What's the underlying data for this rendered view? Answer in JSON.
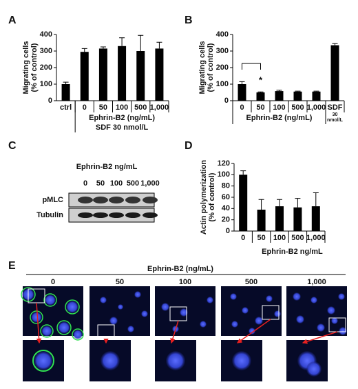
{
  "chart_data": [
    {
      "type": "bar",
      "panel": "A",
      "ylabel": [
        "Migrating cells",
        "(% of control)"
      ],
      "categories": [
        "ctrl",
        "0",
        "50",
        "100",
        "500",
        "1,000"
      ],
      "values": [
        100,
        295,
        315,
        330,
        300,
        315
      ],
      "errors": [
        12,
        20,
        10,
        50,
        95,
        38
      ],
      "color": "#000000",
      "ylim": [
        0,
        400
      ],
      "yticks": [
        0,
        100,
        200,
        300,
        400
      ],
      "xlabel": "Ephrin-B2 (ng/mL)",
      "xlabel2": "SDF 30 nmol/L"
    },
    {
      "type": "bar",
      "panel": "B",
      "ylabel": [
        "Migrating cells",
        "(% of control)"
      ],
      "categories": [
        "0",
        "50",
        "100",
        "500",
        "1,000",
        "SDF"
      ],
      "values": [
        100,
        50,
        58,
        55,
        55,
        335
      ],
      "errors": [
        15,
        3,
        5,
        3,
        3,
        10
      ],
      "color": "#000000",
      "ylim": [
        0,
        400
      ],
      "yticks": [
        0,
        100,
        200,
        300,
        400
      ],
      "xlabel": "Ephrin-B2 (ng/mL)",
      "annotations": {
        "star": "*",
        "sdf_dose": [
          "30",
          "nmol/L"
        ]
      }
    },
    {
      "type": "bar",
      "panel": "D",
      "ylabel": [
        "Actin polymerization",
        "(% of control)"
      ],
      "categories": [
        "0",
        "50",
        "100",
        "500",
        "1,000"
      ],
      "values": [
        100,
        38,
        44,
        42,
        44
      ],
      "errors": [
        7,
        18,
        12,
        16,
        24
      ],
      "color": "#000000",
      "ylim": [
        0,
        120
      ],
      "yticks": [
        0,
        20,
        40,
        60,
        80,
        100,
        120
      ],
      "xlabel": "Ephrin-B2 ng/mL"
    }
  ],
  "blot": {
    "panel": "C",
    "title": "Ephrin-B2 ng/mL",
    "lanes": [
      "0",
      "50",
      "100",
      "500",
      "1,000"
    ],
    "rows": [
      "pMLC",
      "Tubulin"
    ]
  },
  "micrographs": {
    "panel": "E",
    "title": "Ephrin-B2 (ng/mL)",
    "labels": [
      "0",
      "50",
      "100",
      "500",
      "1,000"
    ]
  }
}
